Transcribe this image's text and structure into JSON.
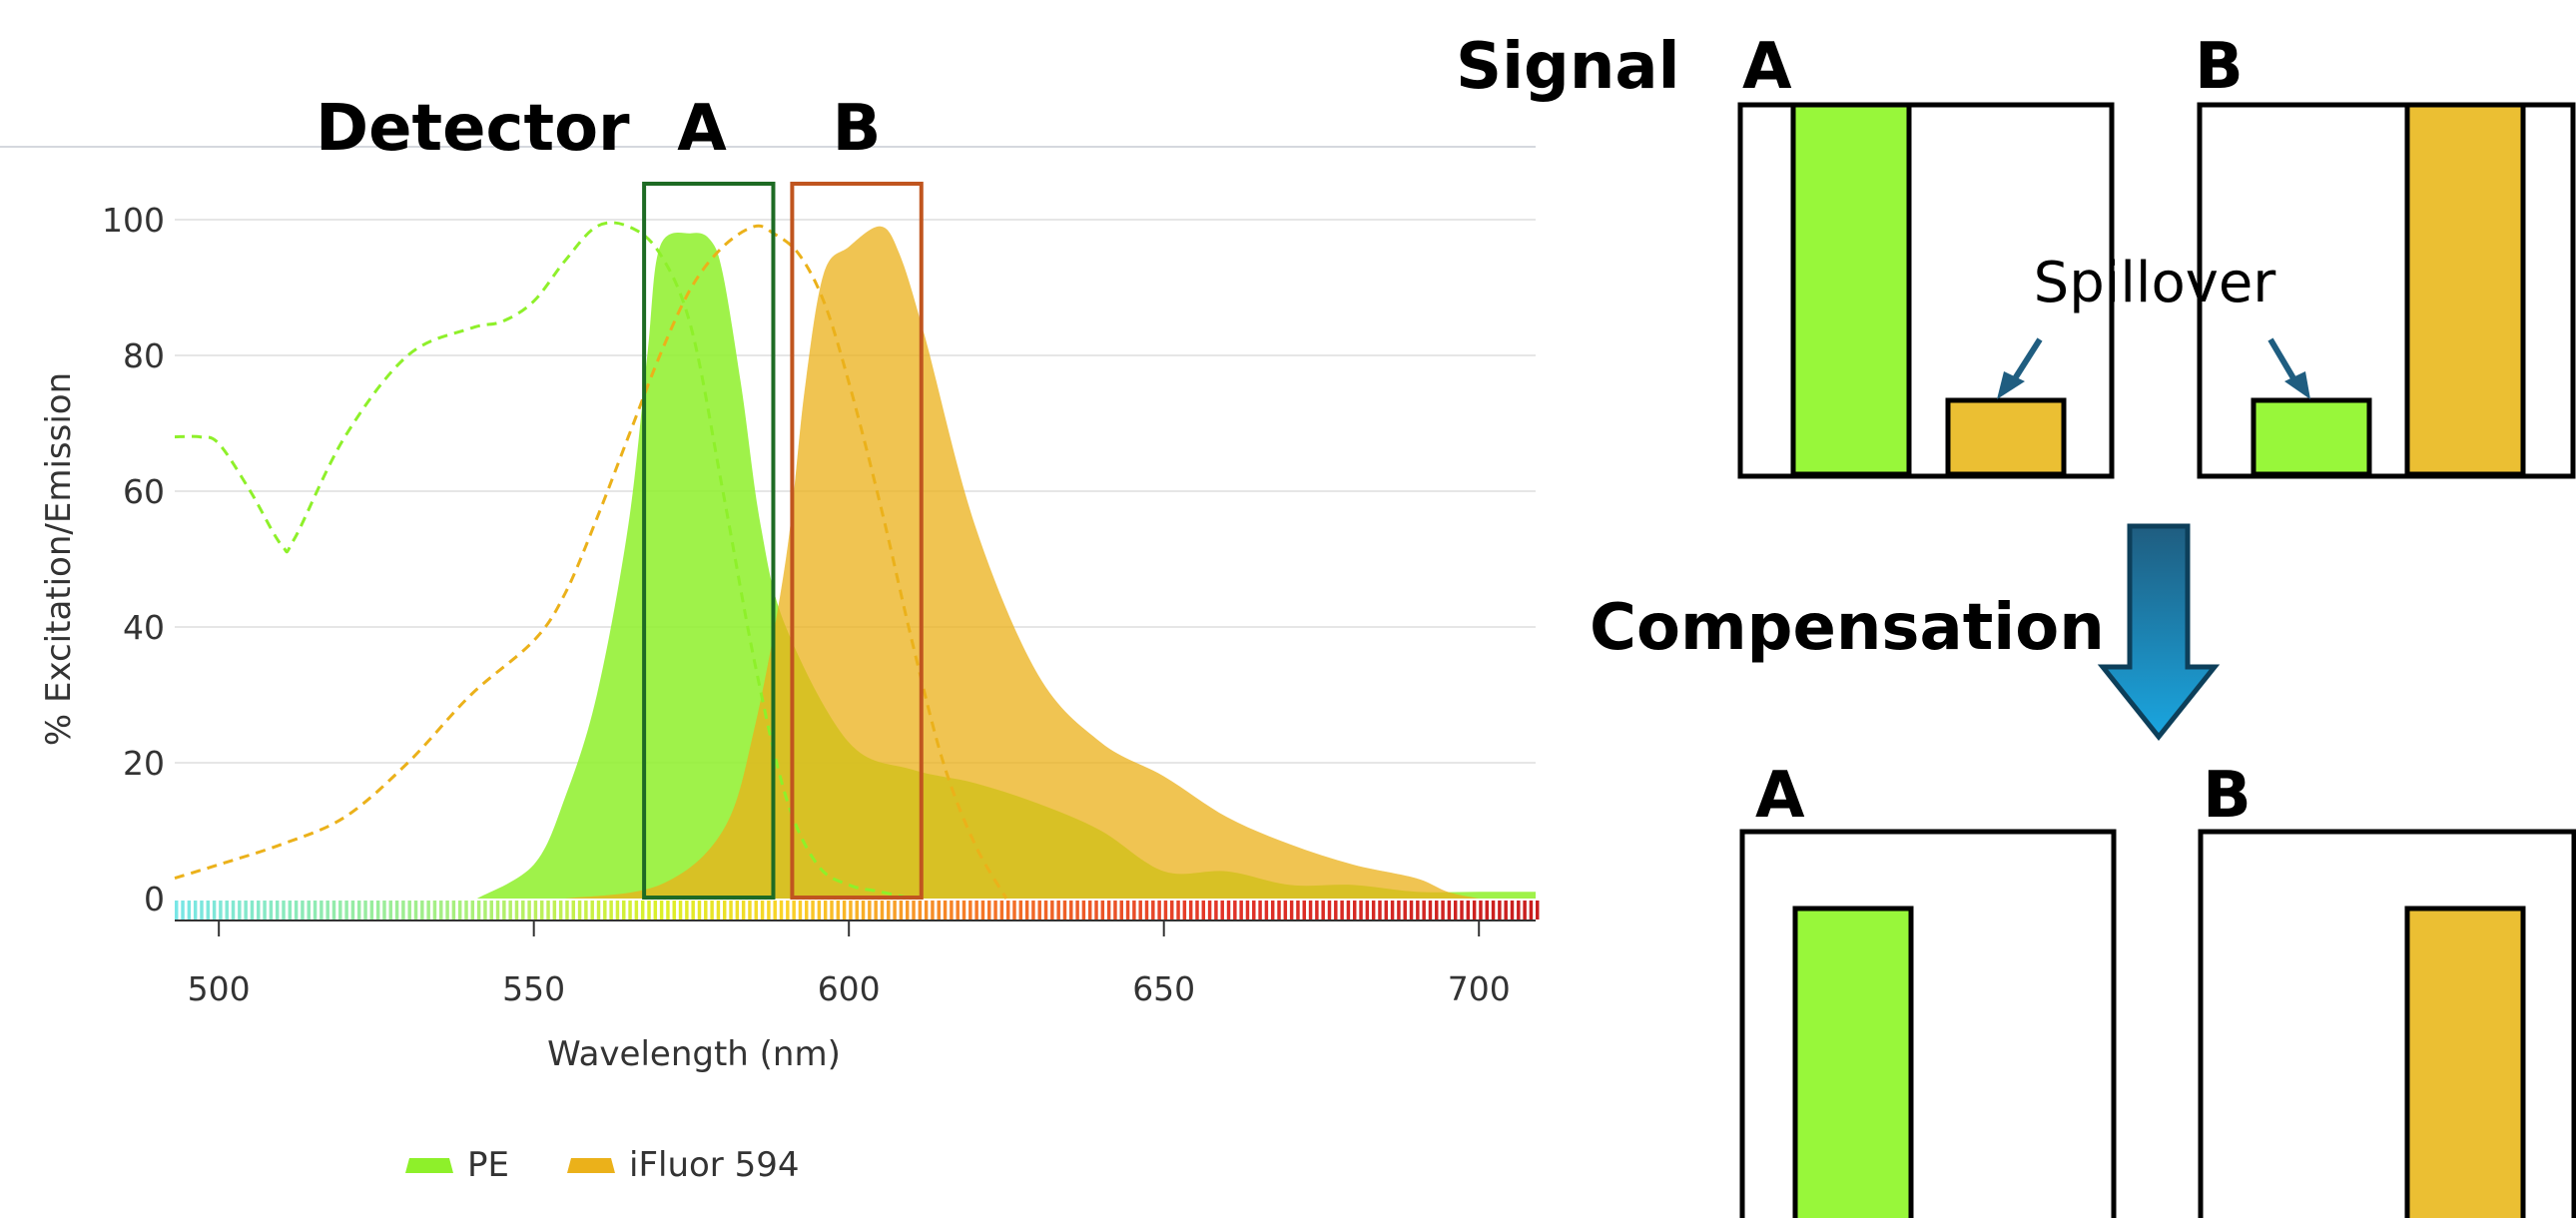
{
  "labels": {
    "detector": "Detector",
    "detector_a": "A",
    "detector_b": "B",
    "signal": "Signal",
    "signal_a": "A",
    "signal_b": "B",
    "spillover": "Spillover",
    "compensation": "Compensation",
    "comp_a": "A",
    "comp_b": "B"
  },
  "colors": {
    "pe": "#8ef02a",
    "ifluor": "#ebb11a",
    "pe_bar": "#98f73a",
    "ifluor_bar": "#ebbf33",
    "detector_a": "#1e6b24",
    "detector_b": "#c0551f",
    "arrow_top": "#1f5d80",
    "arrow_bottom": "#1aa6e0"
  },
  "chart_data": {
    "type": "area",
    "xlabel": "Wavelength (nm)",
    "ylabel": "% Excitation/Emission",
    "xlim": [
      493,
      709
    ],
    "ylim": [
      0,
      100
    ],
    "x_ticks": [
      "500",
      "550",
      "600",
      "650",
      "700"
    ],
    "y_ticks": [
      "0",
      "20",
      "40",
      "60",
      "80",
      "100"
    ],
    "grid": true,
    "legend_position": "bottom",
    "series": [
      {
        "name": "PE",
        "kind": "emission",
        "x": [
          541,
          550,
          555,
          560,
          565,
          568,
          570,
          575,
          578,
          580,
          583,
          586,
          590,
          600,
          610,
          620,
          630,
          640,
          650,
          660,
          670,
          680,
          690,
          700,
          709
        ],
        "y": [
          0,
          5,
          15,
          30,
          55,
          80,
          96,
          98,
          97,
          92,
          75,
          55,
          40,
          23,
          19,
          17,
          14,
          10,
          4,
          4,
          2,
          2,
          1,
          1,
          1
        ]
      },
      {
        "name": "iFluor 594",
        "kind": "emission",
        "x": [
          555,
          570,
          580,
          585,
          590,
          593,
          596,
          600,
          605,
          608,
          612,
          620,
          630,
          640,
          650,
          660,
          670,
          680,
          690,
          695,
          700
        ],
        "y": [
          0,
          2,
          10,
          25,
          50,
          75,
          92,
          96,
          99,
          95,
          83,
          55,
          33,
          23,
          18,
          12,
          8,
          5,
          3,
          1,
          0
        ]
      },
      {
        "name": "PE",
        "kind": "excitation",
        "x": [
          493,
          497,
          500,
          505,
          510,
          512,
          520,
          530,
          540,
          545,
          550,
          555,
          560,
          565,
          570,
          575,
          580,
          585,
          590,
          595,
          600,
          605,
          610
        ],
        "y": [
          68,
          68,
          67,
          60,
          52,
          53,
          68,
          80,
          84,
          85,
          88,
          94,
          99,
          99,
          95,
          84,
          60,
          35,
          15,
          5,
          2,
          1,
          0
        ]
      },
      {
        "name": "iFluor 594",
        "kind": "excitation",
        "x": [
          493,
          500,
          510,
          520,
          530,
          540,
          550,
          555,
          560,
          565,
          570,
          575,
          580,
          585,
          588,
          592,
          596,
          600,
          605,
          610,
          615,
          620,
          625
        ],
        "y": [
          3,
          5,
          8,
          12,
          20,
          30,
          38,
          45,
          56,
          68,
          80,
          90,
          96,
          99,
          98,
          95,
          88,
          76,
          58,
          38,
          20,
          8,
          0
        ]
      }
    ],
    "detector_windows": [
      {
        "name": "A",
        "from": 567.5,
        "to": 588
      },
      {
        "name": "B",
        "from": 591,
        "to": 611.5
      }
    ]
  },
  "signal_panel": {
    "detector_a": {
      "pe": 100,
      "ifluor": 20
    },
    "detector_b": {
      "pe": 20,
      "ifluor": 100
    }
  },
  "compensated_panel": {
    "detector_a": {
      "pe": 100,
      "ifluor": 0
    },
    "detector_b": {
      "pe": 0,
      "ifluor": 100
    }
  }
}
